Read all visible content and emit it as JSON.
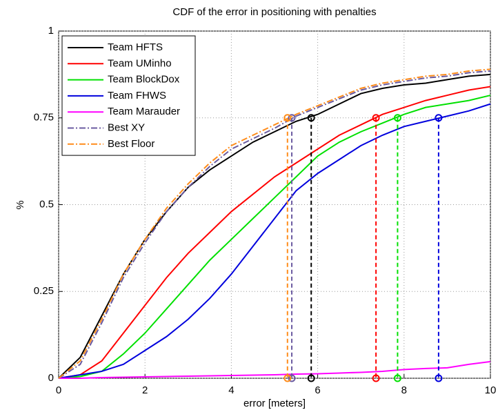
{
  "chart_data": {
    "type": "line",
    "title": "CDF of the error in positioning with penalties",
    "xlabel": "error [meters]",
    "ylabel": "%",
    "x": [
      0,
      0.5,
      1,
      1.5,
      2,
      2.5,
      3,
      3.5,
      4,
      4.5,
      5,
      5.5,
      6,
      6.5,
      7,
      7.5,
      8,
      8.5,
      9,
      9.5,
      10
    ],
    "xlim": [
      0,
      10
    ],
    "xticks": [
      0,
      2,
      4,
      6,
      8,
      10
    ],
    "ylim": [
      0,
      1
    ],
    "yticks": [
      0,
      0.25,
      0.5,
      0.75,
      1
    ],
    "grid": true,
    "legend": "upper-left",
    "percentile": 0.75,
    "series": [
      {
        "name": "Team HFTS",
        "color": "#000000",
        "dash": "solid",
        "p75": 5.85,
        "values": [
          0,
          0.06,
          0.18,
          0.3,
          0.4,
          0.48,
          0.55,
          0.6,
          0.64,
          0.68,
          0.71,
          0.74,
          0.76,
          0.79,
          0.82,
          0.835,
          0.845,
          0.85,
          0.86,
          0.87,
          0.875
        ]
      },
      {
        "name": "Team UMinho",
        "color": "#ff0000",
        "dash": "solid",
        "p75": 7.35,
        "values": [
          0,
          0.01,
          0.05,
          0.13,
          0.21,
          0.29,
          0.36,
          0.42,
          0.48,
          0.53,
          0.58,
          0.62,
          0.66,
          0.7,
          0.73,
          0.76,
          0.78,
          0.8,
          0.815,
          0.83,
          0.84
        ]
      },
      {
        "name": "Team BlockDox",
        "color": "#00e000",
        "dash": "solid",
        "p75": 7.85,
        "values": [
          0,
          0.005,
          0.02,
          0.07,
          0.13,
          0.2,
          0.27,
          0.34,
          0.4,
          0.46,
          0.52,
          0.58,
          0.64,
          0.68,
          0.71,
          0.735,
          0.76,
          0.78,
          0.79,
          0.8,
          0.815
        ]
      },
      {
        "name": "Team FHWS",
        "color": "#0000dd",
        "dash": "solid",
        "p75": 8.8,
        "values": [
          0,
          0.01,
          0.02,
          0.04,
          0.08,
          0.12,
          0.17,
          0.23,
          0.3,
          0.38,
          0.46,
          0.54,
          0.59,
          0.63,
          0.67,
          0.7,
          0.725,
          0.74,
          0.755,
          0.77,
          0.79
        ]
      },
      {
        "name": "Team Marauder",
        "color": "#ff00ff",
        "dash": "solid",
        "values": [
          0,
          0,
          0.002,
          0.003,
          0.004,
          0.005,
          0.006,
          0.007,
          0.008,
          0.009,
          0.01,
          0.012,
          0.013,
          0.015,
          0.017,
          0.02,
          0.025,
          0.028,
          0.03,
          0.04,
          0.048
        ]
      },
      {
        "name": "Best XY",
        "color": "#6a5aa0",
        "dash": "dashdot",
        "p75": 5.4,
        "values": [
          0,
          0.04,
          0.16,
          0.29,
          0.39,
          0.48,
          0.55,
          0.61,
          0.66,
          0.69,
          0.72,
          0.755,
          0.78,
          0.805,
          0.83,
          0.845,
          0.855,
          0.865,
          0.87,
          0.88,
          0.885
        ]
      },
      {
        "name": "Best Floor",
        "color": "#ff8c1a",
        "dash": "dashdot",
        "p75": 5.3,
        "values": [
          0,
          0.05,
          0.17,
          0.3,
          0.4,
          0.49,
          0.56,
          0.62,
          0.67,
          0.7,
          0.73,
          0.76,
          0.785,
          0.81,
          0.835,
          0.85,
          0.86,
          0.87,
          0.875,
          0.885,
          0.89
        ]
      }
    ]
  }
}
